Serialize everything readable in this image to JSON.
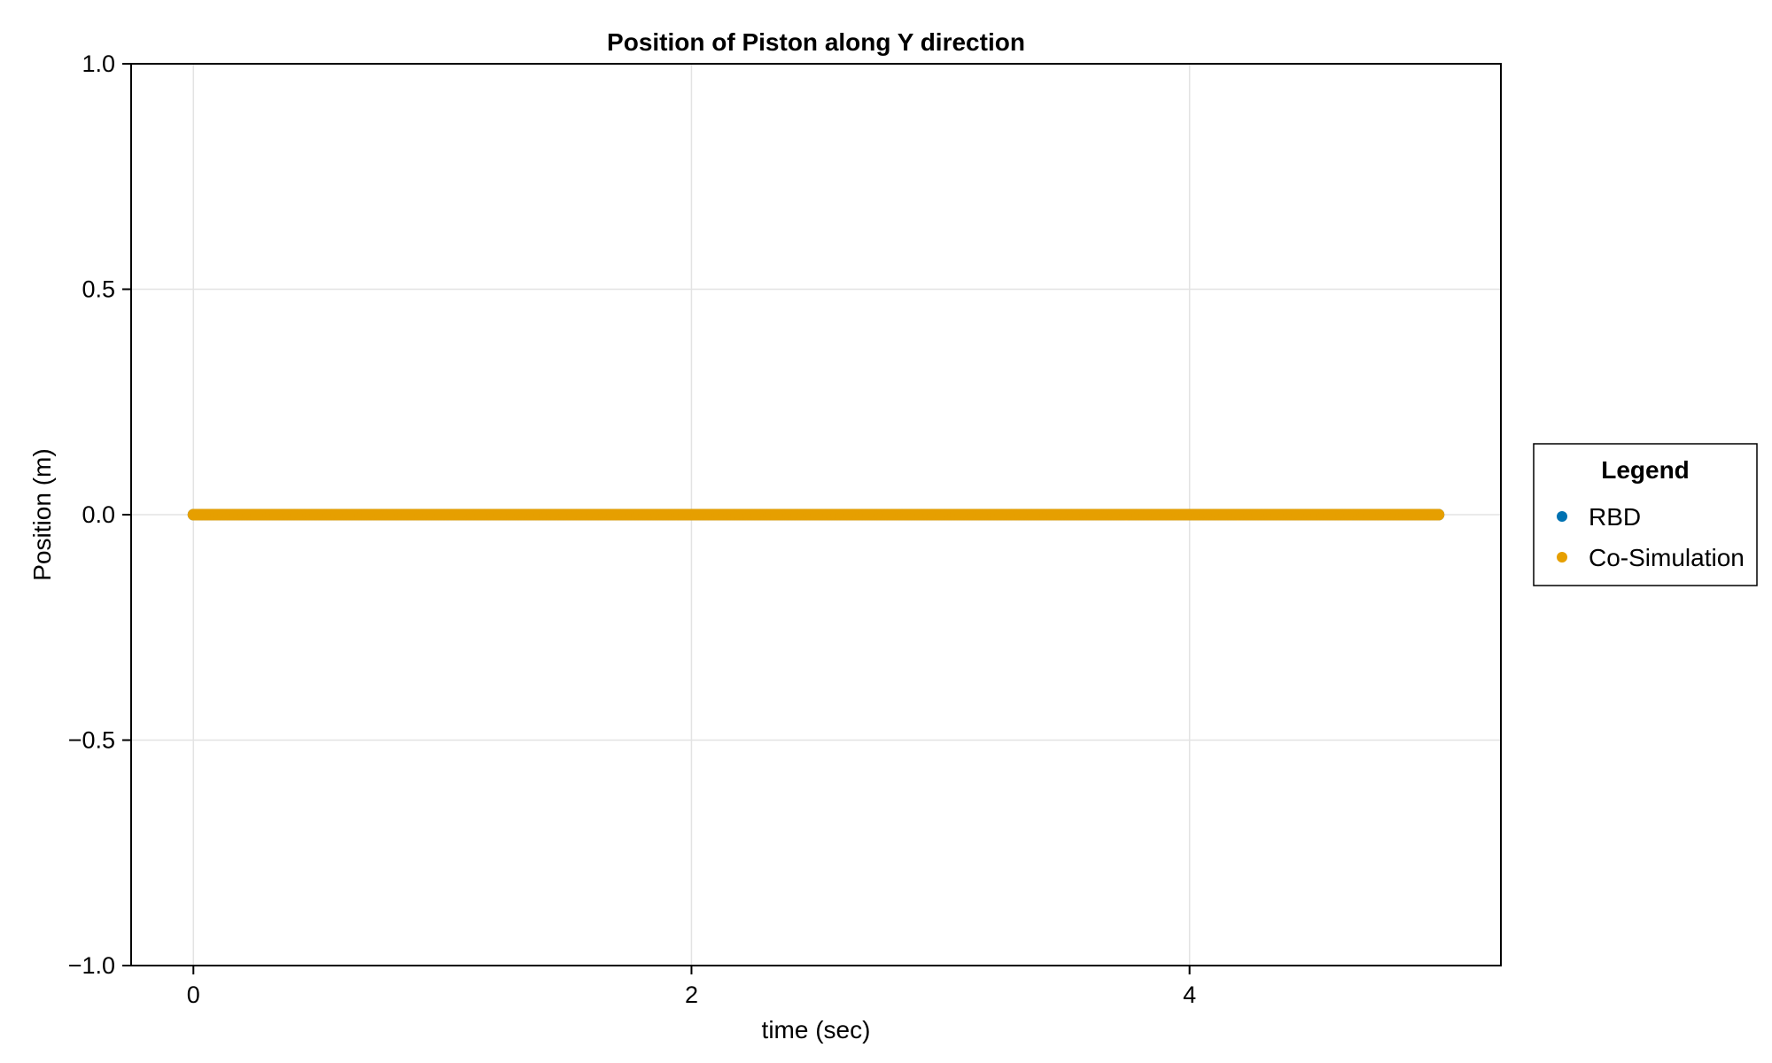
{
  "chart_data": {
    "type": "scatter",
    "title": "Position of Piston along Y direction",
    "xlabel": "time (sec)",
    "ylabel": "Position (m)",
    "xlim": [
      -0.25,
      5.25
    ],
    "ylim": [
      -1.0,
      1.0
    ],
    "x_ticks": [
      0,
      2,
      4
    ],
    "x_tick_labels": [
      "0",
      "2",
      "4"
    ],
    "y_ticks": [
      -1.0,
      -0.5,
      0.0,
      0.5,
      1.0
    ],
    "y_tick_labels": [
      "−1.0",
      "−0.5",
      "0.0",
      "0.5",
      "1.0"
    ],
    "grid": true,
    "legend": {
      "title": "Legend",
      "placement": "right-outside"
    },
    "series": [
      {
        "name": "RBD",
        "color": "#0072b2",
        "x_range": [
          0,
          5
        ],
        "y_constant": 0.0
      },
      {
        "name": "Co-Simulation",
        "color": "#e69f00",
        "x_range": [
          0,
          5
        ],
        "y_constant": 0.0
      }
    ]
  }
}
